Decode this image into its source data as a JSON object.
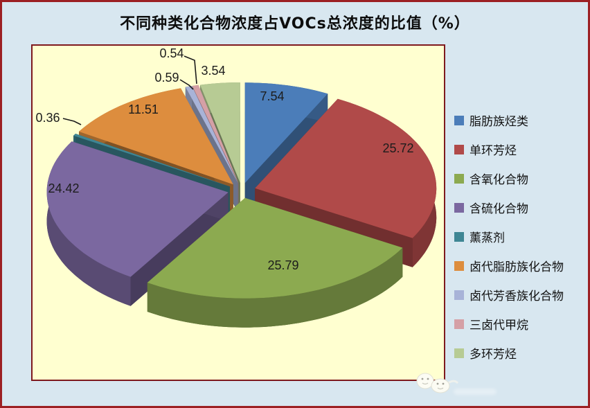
{
  "title": "不同种类化合物浓度占VOCs总浓度的比值（%）",
  "colors": {
    "canvas_bg": "#d8e7f0",
    "frame_border": "#9c2023",
    "plot_bg": "#ffffd0",
    "plot_border": "#7e191d",
    "title_text": "#0d0d0d",
    "legend_text": "#111111",
    "label_text": "#1c1c1c",
    "leader_line": "#1a1a1a"
  },
  "chart_data": {
    "type": "pie",
    "style": "3d-exploded",
    "title": "不同种类化合物浓度占VOCs总浓度的比值（%）",
    "unit": "%",
    "legend_position": "right",
    "data_labels": "value, 2 decimals, shown on/near each slice",
    "series": [
      {
        "label": "脂肪族烃类",
        "value": 7.54,
        "color": "#4b7db9"
      },
      {
        "label": "单环芳烃",
        "value": 25.72,
        "color": "#b04a49"
      },
      {
        "label": "含氧化合物",
        "value": 25.79,
        "color": "#8caa50"
      },
      {
        "label": "含硫化合物",
        "value": 24.42,
        "color": "#7b68a0"
      },
      {
        "label": "薰蒸剂",
        "value": 0.36,
        "color": "#3f8694"
      },
      {
        "label": "卤代脂肪族化合物",
        "value": 11.51,
        "color": "#dd8d3e"
      },
      {
        "label": "卤代芳香族化合物",
        "value": 0.59,
        "color": "#a8b3d8"
      },
      {
        "label": "三卤代甲烷",
        "value": 0.54,
        "color": "#d5a0a6"
      },
      {
        "label": "多环芳烃",
        "value": 3.54,
        "color": "#b7cb94"
      }
    ]
  }
}
